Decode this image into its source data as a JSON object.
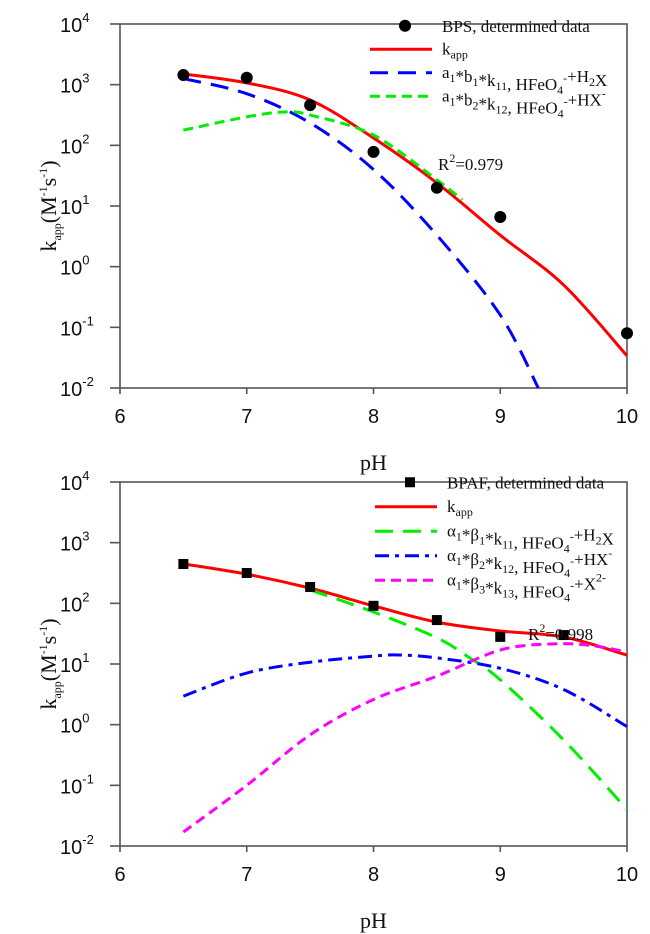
{
  "chart_data": [
    {
      "type": "line",
      "panel": "top",
      "title": "",
      "xlabel": "pH",
      "ylabel": "kapp(M-1s-1)",
      "yscale": "log",
      "xlim": [
        6,
        10
      ],
      "ylim": [
        0.01,
        10000
      ],
      "xticks": [
        "6",
        "7",
        "8",
        "9",
        "10"
      ],
      "yticks": [
        {
          "base": "10",
          "exp": "4"
        },
        {
          "base": "10",
          "exp": "3"
        },
        {
          "base": "10",
          "exp": "2"
        },
        {
          "base": "10",
          "exp": "1"
        },
        {
          "base": "10",
          "exp": "0"
        },
        {
          "base": "10",
          "exp": "-1"
        },
        {
          "base": "10",
          "exp": "-2"
        }
      ],
      "grid": false,
      "legend_position": "top-right",
      "annotation": {
        "main": "R",
        "sup": "2",
        "rest": "=0.979"
      },
      "scatter": {
        "name": "BPS, determined data",
        "marker": "circle",
        "color": "#000000",
        "x": [
          6.5,
          7.0,
          7.5,
          8.0,
          8.5,
          9.0,
          10.0
        ],
        "y": [
          1440,
          1300,
          460,
          78,
          20,
          6.6,
          0.08
        ]
      },
      "series": [
        {
          "name": "kapp",
          "legend": {
            "main": "k",
            "sub": "app",
            "rest": ""
          },
          "color": "#ff0000",
          "style": "solid",
          "x": [
            6.5,
            7.0,
            7.5,
            8.0,
            8.5,
            9.0,
            9.5,
            10.0
          ],
          "y": [
            1500,
            1070,
            560,
            132,
            24,
            3.3,
            0.5,
            0.034
          ]
        },
        {
          "name": "a1*b1*k11, HFeO4-+H2X",
          "legend_parts": [
            [
              "a",
              "1",
              ""
            ],
            [
              "*b",
              "1",
              ""
            ],
            [
              "*k",
              "11",
              ""
            ],
            [
              ", HFeO",
              "4",
              "-"
            ],
            [
              "+H",
              "2",
              ""
            ],
            [
              "X",
              "",
              ""
            ]
          ],
          "color": "#0000ff",
          "style": "longdash",
          "x": [
            6.5,
            7.0,
            7.5,
            8.0,
            8.5,
            9.0,
            9.3
          ],
          "y": [
            1260,
            710,
            234,
            40,
            3.3,
            0.16,
            0.01
          ]
        },
        {
          "name": "a1*b2*k12, HFeO4-+HX-",
          "legend_parts": [
            [
              "a",
              "1",
              ""
            ],
            [
              "*b",
              "2",
              ""
            ],
            [
              "*k",
              "12",
              ""
            ],
            [
              ", HFeO",
              "4",
              "-"
            ],
            [
              "+HX",
              "",
              "-"
            ]
          ],
          "color": "#00ee00",
          "style": "dash",
          "x": [
            6.5,
            7.0,
            7.3,
            7.5,
            8.0,
            8.5,
            8.7
          ],
          "y": [
            178,
            295,
            355,
            316,
            148,
            27,
            12.6
          ]
        }
      ]
    },
    {
      "type": "line",
      "panel": "bottom",
      "title": "",
      "xlabel": "pH",
      "ylabel": "kapp(M-1s-1)",
      "yscale": "log",
      "xlim": [
        6,
        10
      ],
      "ylim": [
        0.01,
        10000
      ],
      "xticks": [
        "6",
        "7",
        "8",
        "9",
        "10"
      ],
      "yticks": [
        {
          "base": "10",
          "exp": "4"
        },
        {
          "base": "10",
          "exp": "3"
        },
        {
          "base": "10",
          "exp": "2"
        },
        {
          "base": "10",
          "exp": "1"
        },
        {
          "base": "10",
          "exp": "0"
        },
        {
          "base": "10",
          "exp": "-1"
        },
        {
          "base": "10",
          "exp": "-2"
        }
      ],
      "grid": false,
      "legend_position": "top-right",
      "annotation": {
        "main": "R",
        "sup": "2",
        "rest": "=0.998"
      },
      "scatter": {
        "name": "BPAF, determined data",
        "marker": "square",
        "color": "#000000",
        "x": [
          6.5,
          7.0,
          7.5,
          8.0,
          8.5,
          9.0,
          9.5
        ],
        "y": [
          445,
          316,
          186,
          91,
          53,
          28,
          30
        ]
      },
      "series": [
        {
          "name": "kapp",
          "legend": {
            "main": "k",
            "sub": "app",
            "rest": ""
          },
          "color": "#ff0000",
          "style": "solid",
          "x": [
            6.5,
            7.0,
            7.5,
            8.0,
            8.5,
            9.0,
            9.5,
            10.0
          ],
          "y": [
            447,
            302,
            178,
            91,
            49,
            35,
            28,
            14
          ]
        },
        {
          "name": "α1*β1*k11, HFeO4-+H2X",
          "legend_parts": [
            [
              "α",
              "1",
              ""
            ],
            [
              "*β",
              "1",
              ""
            ],
            [
              "*k",
              "11",
              ""
            ],
            [
              ", HFeO",
              "4",
              "-"
            ],
            [
              "+H",
              "2",
              ""
            ],
            [
              "X",
              "",
              ""
            ]
          ],
          "color": "#00ee00",
          "style": "longdash",
          "x": [
            7.5,
            8.0,
            8.5,
            8.75,
            9.0,
            9.5,
            10.0
          ],
          "y": [
            166,
            72,
            27,
            13,
            5.5,
            0.56,
            0.04
          ]
        },
        {
          "name": "α1*β2*k12, HFeO4-+HX-",
          "legend_parts": [
            [
              "α",
              "1",
              ""
            ],
            [
              "*β",
              "2",
              ""
            ],
            [
              "*k",
              "12",
              ""
            ],
            [
              ", HFeO",
              "4",
              "-"
            ],
            [
              "+HX",
              "",
              "-"
            ]
          ],
          "color": "#0000ff",
          "style": "dashdot",
          "x": [
            6.5,
            7.0,
            7.5,
            8.0,
            8.2,
            8.5,
            9.0,
            9.5,
            10.0
          ],
          "y": [
            2.95,
            7.1,
            10.7,
            13.5,
            14.1,
            12.6,
            8.5,
            3.8,
            0.93
          ]
        },
        {
          "name": "α1*β3*k13, HFeO4-+X2-",
          "legend_parts": [
            [
              "α",
              "1",
              ""
            ],
            [
              "*β",
              "3",
              ""
            ],
            [
              "*k",
              "13",
              ""
            ],
            [
              ", HFeO",
              "4",
              "-"
            ],
            [
              "+X",
              "",
              "2-"
            ]
          ],
          "color": "#ff00ff",
          "style": "dash",
          "x": [
            6.5,
            7.0,
            7.5,
            8.0,
            8.5,
            9.0,
            9.4,
            9.7,
            10.0
          ],
          "y": [
            0.017,
            0.1,
            0.68,
            2.6,
            6.3,
            17,
            21.4,
            20.4,
            15.8
          ]
        }
      ]
    }
  ]
}
